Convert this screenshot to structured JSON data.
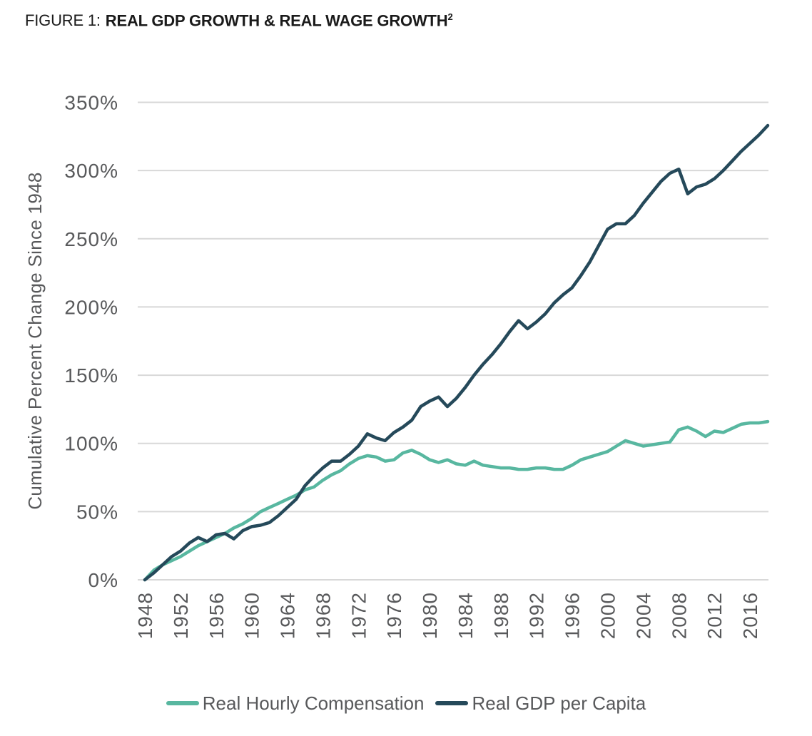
{
  "figure": {
    "label": "FIGURE 1:",
    "title": "REAL GDP GROWTH & REAL WAGE GROWTH",
    "footnote_marker": "2"
  },
  "colors": {
    "background": "#ffffff",
    "grid": "#d8d8d8",
    "axis_text": "#58595b",
    "title_text": "#1a1a1a",
    "teal": "#58b7a0",
    "navy": "#25495a"
  },
  "chart_data": {
    "type": "line",
    "title": "FIGURE 1: REAL GDP GROWTH & REAL WAGE GROWTH",
    "xlabel": "",
    "ylabel": "Cumulative Percent Change Since 1948",
    "ylim": [
      0,
      350
    ],
    "ytick_step": 50,
    "ytick_suffix": "%",
    "x_range": [
      1948,
      2018
    ],
    "xticks": [
      1948,
      1952,
      1956,
      1960,
      1964,
      1968,
      1972,
      1976,
      1980,
      1984,
      1988,
      1992,
      1996,
      2000,
      2004,
      2008,
      2012,
      2016
    ],
    "grid": "horizontal",
    "legend_position": "bottom",
    "years": [
      1948,
      1949,
      1950,
      1951,
      1952,
      1953,
      1954,
      1955,
      1956,
      1957,
      1958,
      1959,
      1960,
      1961,
      1962,
      1963,
      1964,
      1965,
      1966,
      1967,
      1968,
      1969,
      1970,
      1971,
      1972,
      1973,
      1974,
      1975,
      1976,
      1977,
      1978,
      1979,
      1980,
      1981,
      1982,
      1983,
      1984,
      1985,
      1986,
      1987,
      1988,
      1989,
      1990,
      1991,
      1992,
      1993,
      1994,
      1995,
      1996,
      1997,
      1998,
      1999,
      2000,
      2001,
      2002,
      2003,
      2004,
      2005,
      2006,
      2007,
      2008,
      2009,
      2010,
      2011,
      2012,
      2013,
      2014,
      2015,
      2016,
      2017,
      2018
    ],
    "series": [
      {
        "name": "Real Hourly Compensation",
        "color": "#58b7a0",
        "values": [
          0,
          7,
          11,
          14,
          17,
          21,
          25,
          28,
          31,
          34,
          38,
          41,
          45,
          50,
          53,
          56,
          59,
          62,
          66,
          68,
          73,
          77,
          80,
          85,
          89,
          91,
          90,
          87,
          88,
          93,
          95,
          92,
          88,
          86,
          88,
          85,
          84,
          87,
          84,
          83,
          82,
          82,
          81,
          81,
          82,
          82,
          81,
          81,
          84,
          88,
          90,
          92,
          94,
          98,
          102,
          100,
          98,
          99,
          100,
          101,
          110,
          112,
          109,
          105,
          109,
          108,
          111,
          114,
          115,
          115,
          116
        ]
      },
      {
        "name": "Real GDP per Capita",
        "color": "#25495a",
        "values": [
          0,
          5,
          11,
          17,
          21,
          27,
          31,
          28,
          33,
          34,
          30,
          36,
          39,
          40,
          42,
          47,
          53,
          59,
          69,
          76,
          82,
          87,
          87,
          92,
          98,
          107,
          104,
          102,
          108,
          112,
          117,
          127,
          131,
          134,
          127,
          133,
          141,
          150,
          158,
          165,
          173,
          182,
          190,
          184,
          189,
          195,
          203,
          209,
          214,
          223,
          233,
          245,
          257,
          261,
          261,
          267,
          276,
          284,
          292,
          298,
          301,
          283,
          288,
          290,
          294,
          300,
          307,
          314,
          320,
          326,
          333
        ]
      }
    ]
  }
}
